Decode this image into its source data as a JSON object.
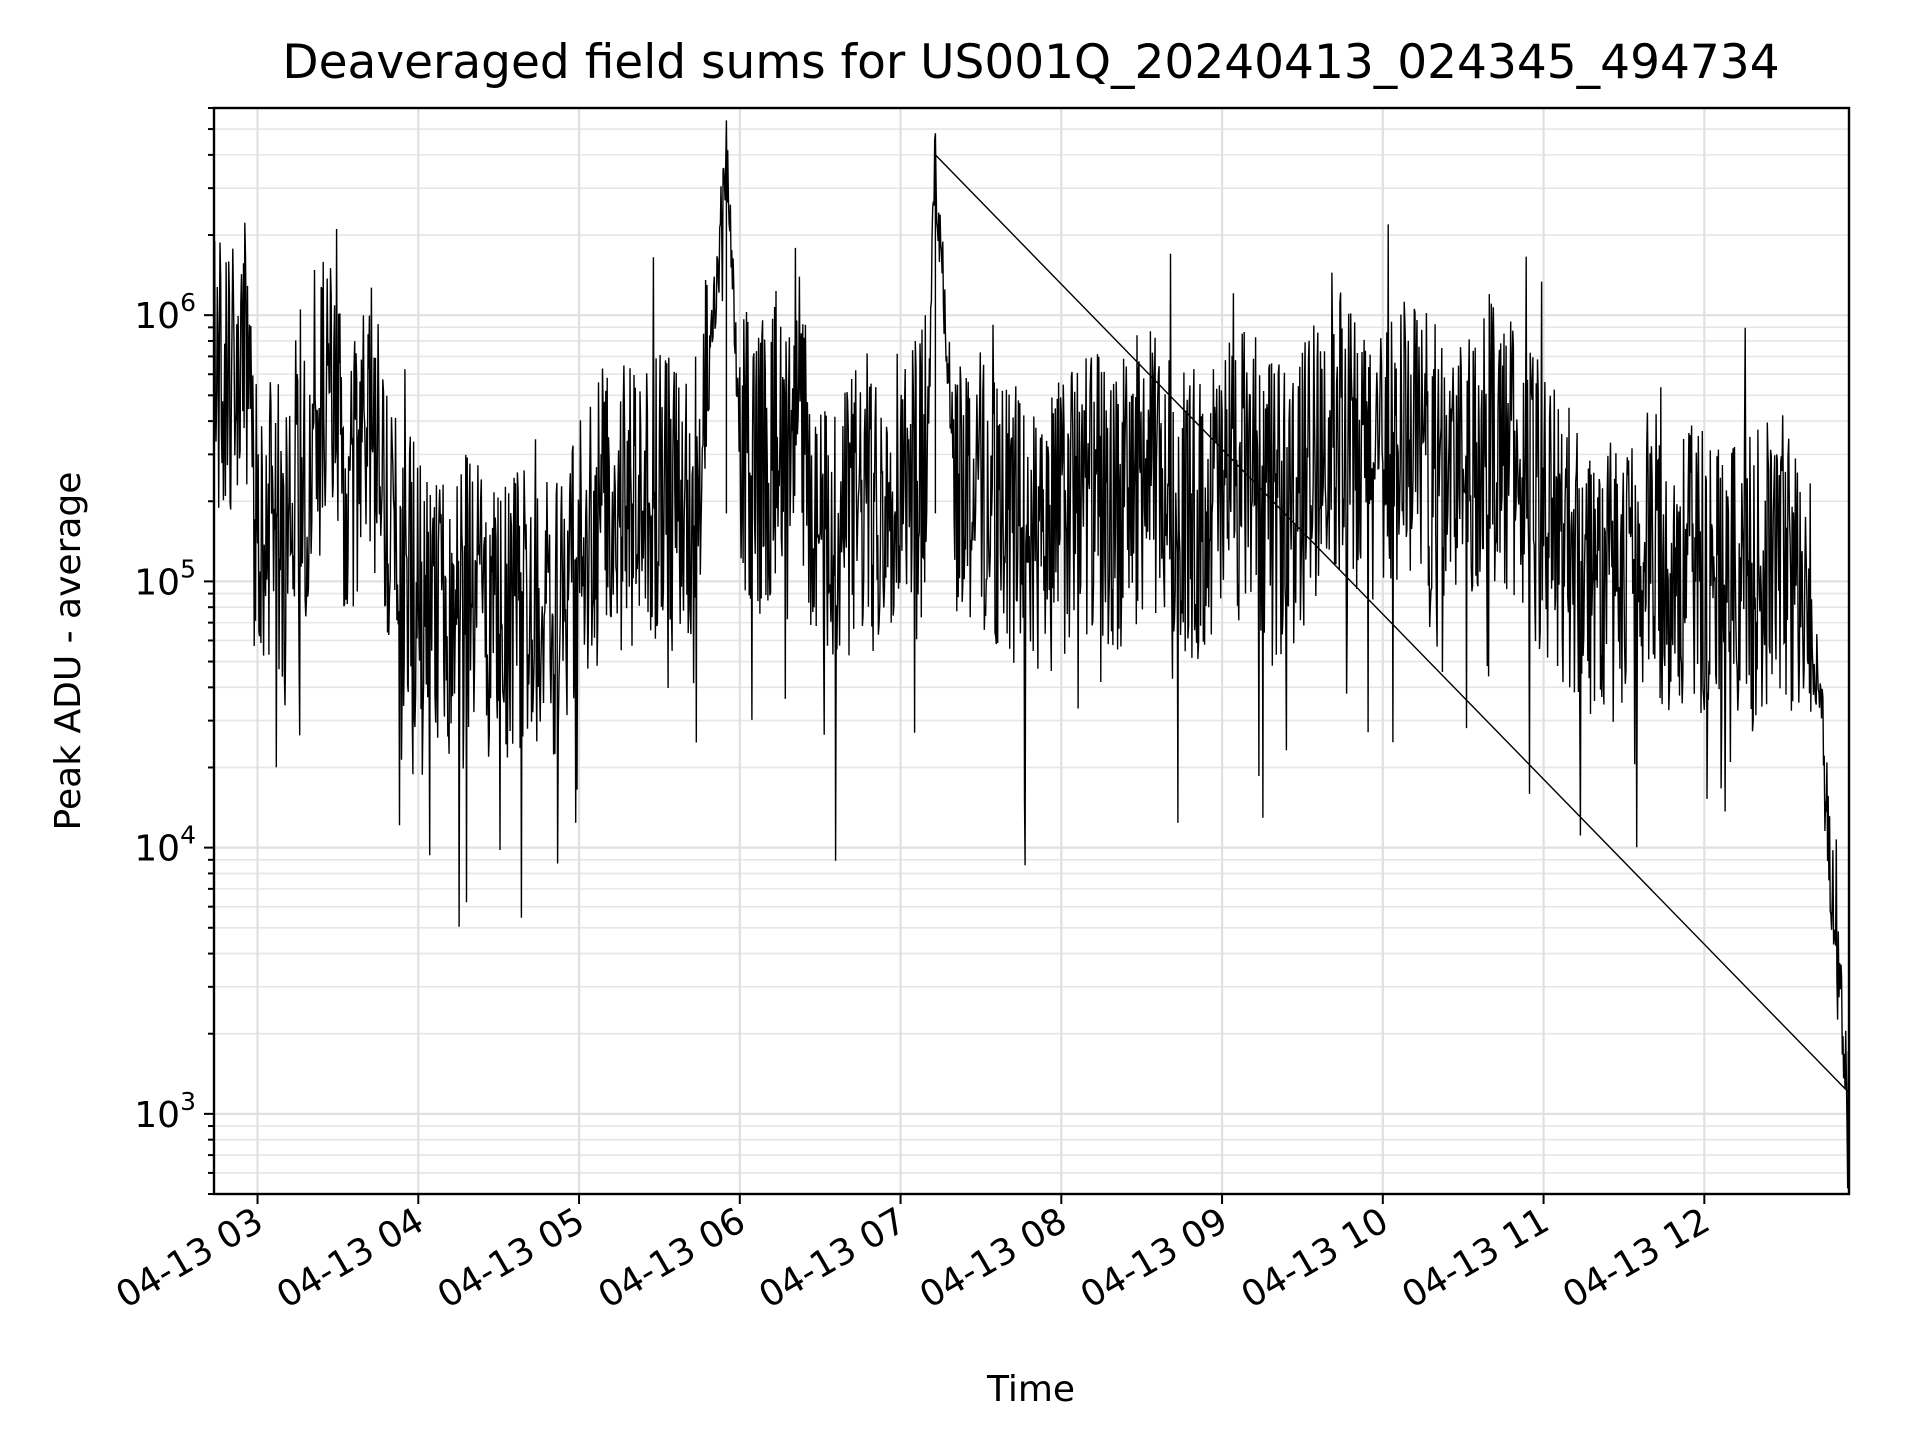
{
  "chart_data": {
    "type": "line",
    "title": "Deaveraged field sums for US001Q_20240413_024345_494734",
    "xlabel": "Time",
    "ylabel": "Peak ADU - average",
    "yscale": "log",
    "grid": true,
    "xlim": [
      "2024-04-13 02:43:45",
      "2024-04-13 12:54:00"
    ],
    "ylim": [
      500,
      6000000
    ],
    "x_tick_labels": [
      "04-13 03",
      "04-13 04",
      "04-13 05",
      "04-13 06",
      "04-13 07",
      "04-13 08",
      "04-13 09",
      "04-13 10",
      "04-13 11",
      "04-13 12"
    ],
    "x_tick_times": [
      "2024-04-13 03:00",
      "2024-04-13 04:00",
      "2024-04-13 05:00",
      "2024-04-13 06:00",
      "2024-04-13 07:00",
      "2024-04-13 08:00",
      "2024-04-13 09:00",
      "2024-04-13 10:00",
      "2024-04-13 11:00",
      "2024-04-13 12:00"
    ],
    "y_ticks": [
      {
        "value": 1000,
        "base": "10",
        "exp": "3"
      },
      {
        "value": 10000,
        "base": "10",
        "exp": "4"
      },
      {
        "value": 100000,
        "base": "10",
        "exp": "5"
      },
      {
        "value": 1000000,
        "base": "10",
        "exp": "6"
      }
    ],
    "series_color": "#000000",
    "series": [
      {
        "x": [
          "2024-04-13 02:44",
          "2024-04-13 02:50",
          "2024-04-13 02:55",
          "2024-04-13 03:00",
          "2024-04-13 03:05",
          "2024-04-13 03:10",
          "2024-04-13 03:15",
          "2024-04-13 03:20",
          "2024-04-13 03:25",
          "2024-04-13 03:30",
          "2024-04-13 03:35",
          "2024-04-13 03:40",
          "2024-04-13 03:45",
          "2024-04-13 03:50",
          "2024-04-13 04:00",
          "2024-04-13 04:10",
          "2024-04-13 04:20",
          "2024-04-13 04:30",
          "2024-04-13 04:40",
          "2024-04-13 04:50",
          "2024-04-13 05:00",
          "2024-04-13 05:10",
          "2024-04-13 05:20",
          "2024-04-13 05:30",
          "2024-04-13 05:40",
          "2024-04-13 05:48",
          "2024-04-13 05:55",
          "2024-04-13 06:00",
          "2024-04-13 06:10",
          "2024-04-13 06:20",
          "2024-04-13 06:30",
          "2024-04-13 06:40",
          "2024-04-13 06:50",
          "2024-04-13 07:00",
          "2024-04-13 07:10",
          "2024-04-13 07:13",
          "2024-04-13 07:20",
          "2024-04-13 07:30",
          "2024-04-13 07:40",
          "2024-04-13 07:50",
          "2024-04-13 08:00",
          "2024-04-13 08:10",
          "2024-04-13 08:20",
          "2024-04-13 08:30",
          "2024-04-13 08:40",
          "2024-04-13 08:50",
          "2024-04-13 09:00",
          "2024-04-13 09:10",
          "2024-04-13 09:20",
          "2024-04-13 09:30",
          "2024-04-13 09:40",
          "2024-04-13 09:50",
          "2024-04-13 10:00",
          "2024-04-13 10:10",
          "2024-04-13 10:20",
          "2024-04-13 10:30",
          "2024-04-13 10:40",
          "2024-04-13 10:50",
          "2024-04-13 11:00",
          "2024-04-13 11:10",
          "2024-04-13 11:20",
          "2024-04-13 11:30",
          "2024-04-13 11:40",
          "2024-04-13 11:50",
          "2024-04-13 12:00",
          "2024-04-13 12:10",
          "2024-04-13 12:20",
          "2024-04-13 12:30",
          "2024-04-13 12:35",
          "2024-04-13 12:40",
          "2024-04-13 12:45",
          "2024-04-13 12:50",
          "2024-04-13 12:54"
        ],
        "y": [
          700000,
          600000,
          800000,
          150000,
          300000,
          120000,
          500000,
          200000,
          700000,
          400000,
          200000,
          600000,
          300000,
          150000,
          100000,
          80000,
          120000,
          70000,
          100000,
          80000,
          150000,
          250000,
          200000,
          250000,
          200000,
          500000,
          4000000,
          350000,
          300000,
          700000,
          150000,
          200000,
          250000,
          300000,
          350000,
          4000000,
          300000,
          250000,
          200000,
          150000,
          200000,
          250000,
          200000,
          300000,
          250000,
          200000,
          250000,
          300000,
          200000,
          250000,
          500000,
          300000,
          350000,
          400000,
          300000,
          350000,
          400000,
          300000,
          200000,
          150000,
          120000,
          100000,
          150000,
          120000,
          130000,
          120000,
          120000,
          150000,
          100000,
          80000,
          20000,
          3500,
          1200
        ]
      }
    ]
  }
}
